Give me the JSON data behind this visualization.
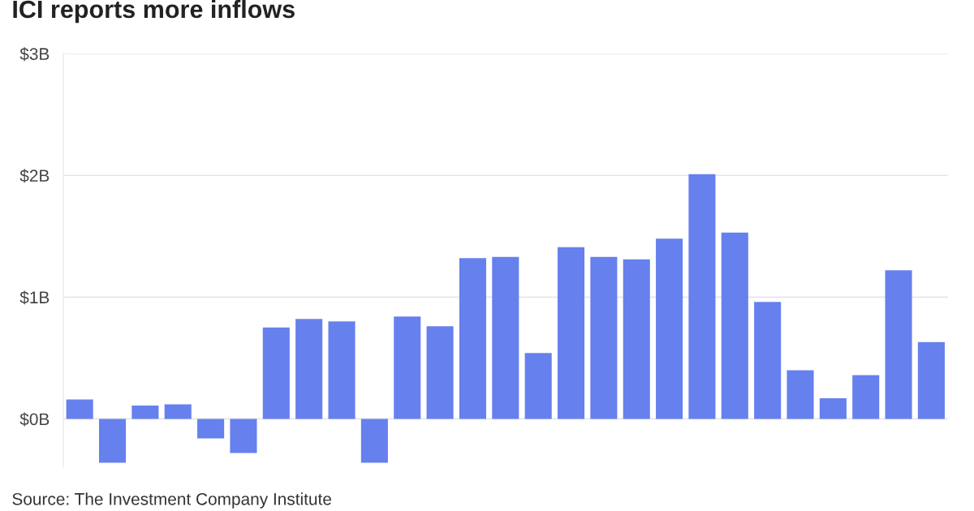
{
  "chart_data": {
    "type": "bar",
    "title": "ICI reports more inflows",
    "categories": [
      null,
      null,
      null,
      null,
      null,
      null,
      null,
      null,
      null,
      null,
      null,
      null,
      null,
      null,
      null,
      null,
      null,
      null,
      null,
      null,
      null,
      null,
      null,
      null,
      null,
      null,
      null
    ],
    "values": [
      0.16,
      -0.36,
      0.11,
      0.12,
      -0.16,
      -0.28,
      0.75,
      0.82,
      0.8,
      -0.36,
      0.84,
      0.76,
      1.32,
      1.33,
      0.54,
      1.41,
      1.33,
      1.31,
      1.48,
      2.01,
      1.53,
      0.96,
      0.4,
      0.17,
      0.36,
      1.22,
      0.63
    ],
    "color": "#6680ee",
    "ylim": [
      -0.4,
      3
    ],
    "yticks": [
      {
        "value": 0,
        "label": "$0B"
      },
      {
        "value": 1,
        "label": "$1B"
      },
      {
        "value": 2,
        "label": "$2B"
      },
      {
        "value": 3,
        "label": "$3B"
      }
    ],
    "grid": "y",
    "annotations": [
      "Source: The Investment Company Institute"
    ]
  }
}
